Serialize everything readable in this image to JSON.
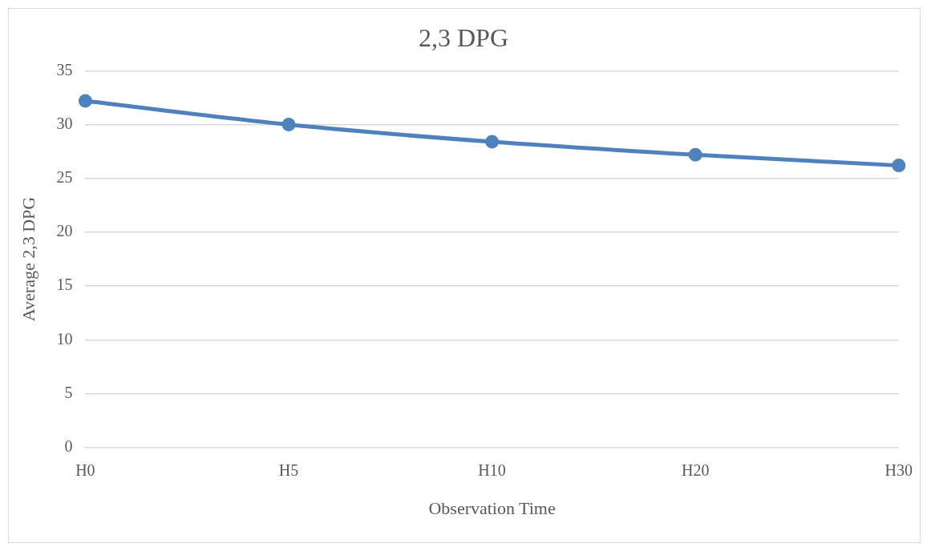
{
  "chart_data": {
    "type": "line",
    "title": "2,3 DPG",
    "xlabel": "Observation Time",
    "ylabel": "Average 2,3 DPG",
    "categories": [
      "H0",
      "H5",
      "H10",
      "H20",
      "H30"
    ],
    "series": [
      {
        "color": "#4f81bd",
        "values": [
          32.2,
          30.0,
          28.4,
          27.2,
          26.2
        ]
      }
    ],
    "ylim": [
      0,
      35
    ],
    "yticks": [
      0,
      5,
      10,
      15,
      20,
      25,
      30,
      35
    ],
    "grid": "y",
    "legend": false,
    "marker": "circle",
    "line_style": "solid"
  }
}
